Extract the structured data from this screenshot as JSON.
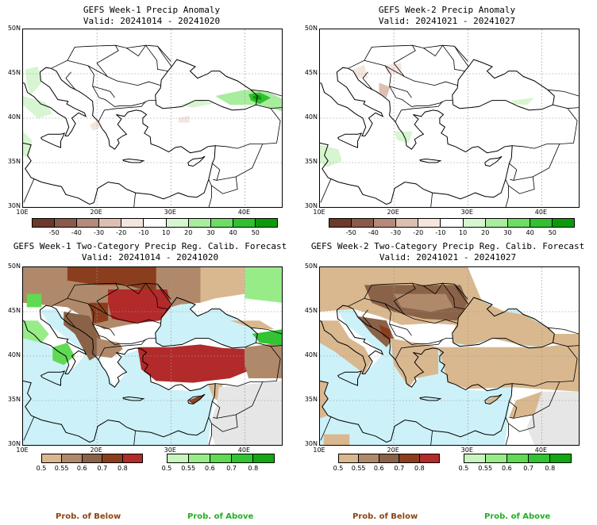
{
  "panels": [
    {
      "title": "GEFS Week-1 Precip Anomaly",
      "valid": "Valid: 20241014 - 20241020"
    },
    {
      "title": "GEFS Week-2 Precip Anomaly",
      "valid": "Valid: 20241021 - 20241027"
    },
    {
      "title": "GEFS Week-1 Two-Category Precip Reg. Calib. Forecast",
      "valid": "Valid: 20241014 - 20241020"
    },
    {
      "title": "GEFS Week-2 Two-Category Precip Reg. Calib. Forecast",
      "valid": "Valid: 20241021 - 20241027"
    }
  ],
  "lat_labels": [
    "50N",
    "45N",
    "40N",
    "35N",
    "30N"
  ],
  "lon_labels": [
    "10E",
    "20E",
    "30E",
    "40E"
  ],
  "anomaly_colorbar": {
    "labels": [
      "-50",
      "-40",
      "-30",
      "-20",
      "-10",
      "10",
      "20",
      "30",
      "40",
      "50"
    ],
    "colors": [
      "#6b3a2a",
      "#8a5a4a",
      "#b58a7a",
      "#ddbfb2",
      "#f4e6df",
      "#ffffff",
      "#d6f5d0",
      "#a8ec9e",
      "#6fdc64",
      "#30c030",
      "#0c9a0c"
    ]
  },
  "below_colorbar": {
    "labels": [
      "0.5",
      "0.55",
      "0.6",
      "0.7",
      "0.8"
    ],
    "colors": [
      "#d9b88f",
      "#b0896a",
      "#8a6248",
      "#8b3e1e",
      "#b22a2a"
    ]
  },
  "above_colorbar": {
    "labels": [
      "0.5",
      "0.55",
      "0.6",
      "0.7",
      "0.8"
    ],
    "colors": [
      "#c8f5bd",
      "#98ec88",
      "#5fda52",
      "#32c432",
      "#11a811"
    ]
  },
  "footer": {
    "below": "Prob. of Below",
    "above": "Prob. of Above"
  },
  "colors": {
    "sea": "#cdf1f8",
    "no_data": "#e6e6e6",
    "below_label": "#8b4513",
    "above_label": "#22b022"
  }
}
